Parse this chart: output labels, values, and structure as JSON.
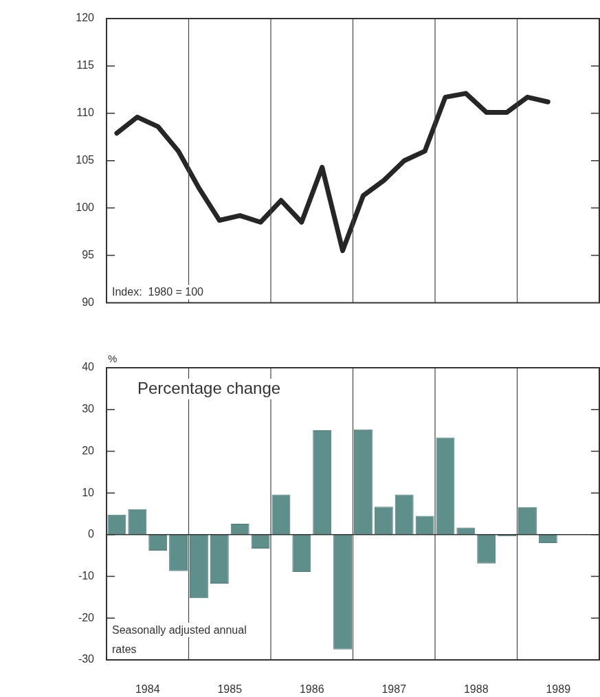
{
  "chart_data": [
    {
      "type": "line",
      "annotations": [
        "Index:  1980 = 100"
      ],
      "x": [
        1984.125,
        1984.375,
        1984.625,
        1984.875,
        1985.125,
        1985.375,
        1985.625,
        1985.875,
        1986.125,
        1986.375,
        1986.625,
        1986.875,
        1987.125,
        1987.375,
        1987.625,
        1987.875,
        1988.125,
        1988.375,
        1988.625,
        1988.875,
        1989.125,
        1989.375
      ],
      "values": [
        107.9,
        109.6,
        108.6,
        106.0,
        102.1,
        98.7,
        99.2,
        98.5,
        100.8,
        98.5,
        104.3,
        95.5,
        101.3,
        102.9,
        105.0,
        106.0,
        111.7,
        112.1,
        110.1,
        110.1,
        111.7,
        111.2
      ],
      "color": "#262626",
      "marker": "none",
      "line_style": "solid",
      "xlim": [
        1984,
        1990
      ],
      "xticks": [
        {
          "value": 1985,
          "label": null
        },
        {
          "value": 1986,
          "label": null
        },
        {
          "value": 1987,
          "label": null
        },
        {
          "value": 1988,
          "label": null
        },
        {
          "value": 1989,
          "label": null
        }
      ],
      "ylim": [
        90,
        120
      ],
      "yticks": [
        90,
        95,
        100,
        105,
        110,
        115,
        120
      ],
      "grid": "x",
      "tick_labels": "y",
      "legend": false
    },
    {
      "type": "bar",
      "title": "Percentage change",
      "ylabel": "%",
      "annotations": [
        "Seasonally adjusted annual rates"
      ],
      "x": [
        1984.125,
        1984.375,
        1984.625,
        1984.875,
        1985.125,
        1985.375,
        1985.625,
        1985.875,
        1986.125,
        1986.375,
        1986.625,
        1986.875,
        1987.125,
        1987.375,
        1987.625,
        1987.875,
        1988.125,
        1988.375,
        1988.625,
        1988.875,
        1989.125,
        1989.375
      ],
      "values": [
        4.8,
        6.1,
        -3.8,
        -8.7,
        -15.2,
        -11.7,
        2.6,
        -3.3,
        9.6,
        -8.9,
        25.0,
        -27.5,
        25.2,
        6.7,
        9.6,
        4.5,
        23.3,
        1.7,
        -6.9,
        -0.4,
        6.6,
        -2.0
      ],
      "color": "#5f8f8b",
      "xlim": [
        1984,
        1990
      ],
      "xticks": [
        {
          "value": 1985,
          "label": null
        },
        {
          "value": 1986,
          "label": null
        },
        {
          "value": 1987,
          "label": null
        },
        {
          "value": 1988,
          "label": null
        },
        {
          "value": 1989,
          "label": null
        },
        {
          "value": 1984.5,
          "label": "1984"
        },
        {
          "value": 1985.5,
          "label": "1985"
        },
        {
          "value": 1986.5,
          "label": "1986"
        },
        {
          "value": 1987.5,
          "label": "1987"
        },
        {
          "value": 1988.5,
          "label": "1988"
        },
        {
          "value": 1989.5,
          "label": "1989"
        }
      ],
      "ylim": [
        -30,
        40
      ],
      "yticks": [
        -30,
        -20,
        -10,
        0,
        10,
        20,
        30,
        40
      ],
      "grid": "x",
      "legend": false
    }
  ]
}
